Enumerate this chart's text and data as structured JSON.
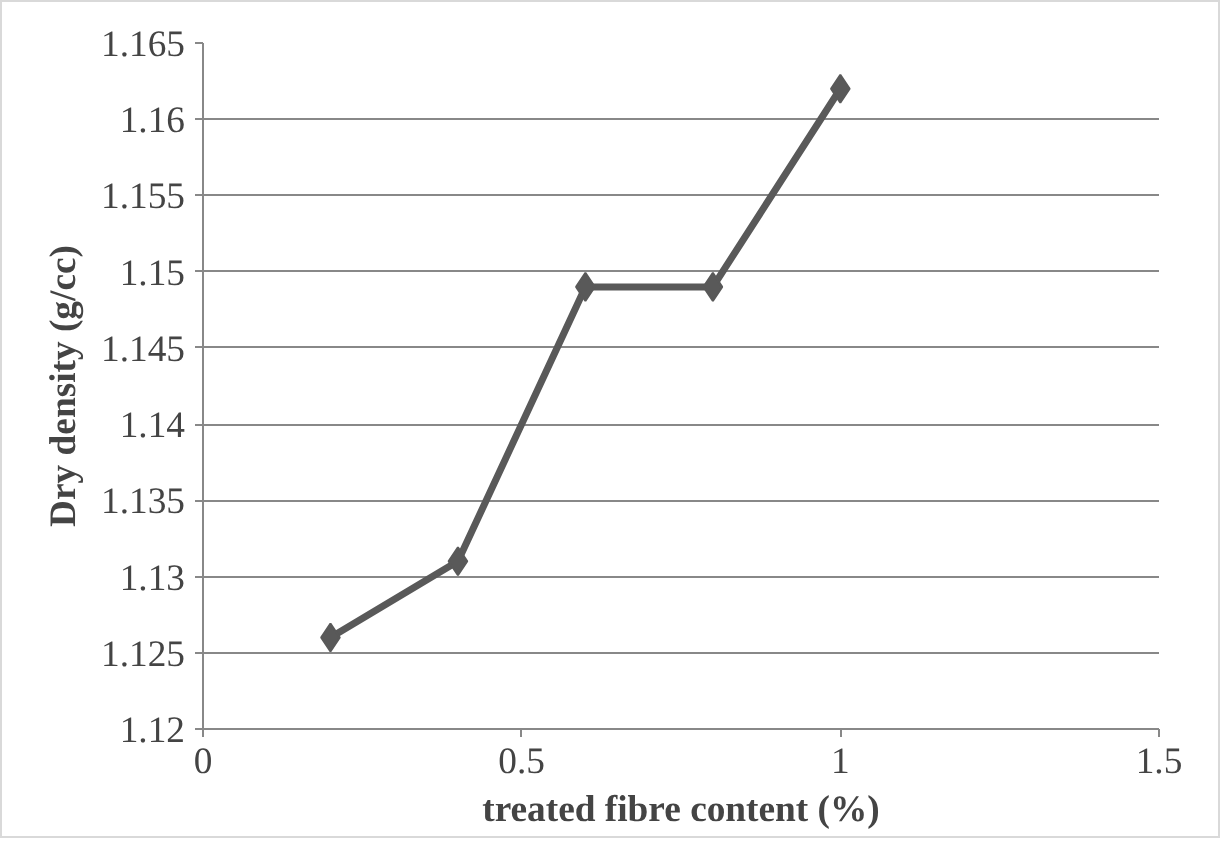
{
  "chart_data": {
    "type": "line",
    "xlabel": "treated fibre content (%)",
    "ylabel": "Dry density (g/cc)",
    "x": [
      0.2,
      0.4,
      0.6,
      0.8,
      1.0
    ],
    "series": [
      {
        "color": "#595959",
        "values": [
          1.126,
          1.131,
          1.149,
          1.149,
          1.162
        ]
      }
    ],
    "xlim": [
      0,
      1.5
    ],
    "xticks": [
      0,
      0.5,
      1,
      1.5
    ],
    "ylim": [
      1.12,
      1.165
    ],
    "yticks": [
      1.12,
      1.125,
      1.13,
      1.135,
      1.14,
      1.145,
      1.15,
      1.155,
      1.16,
      1.165
    ],
    "grid": "y",
    "marker": "diamond",
    "line_style": "solid"
  }
}
